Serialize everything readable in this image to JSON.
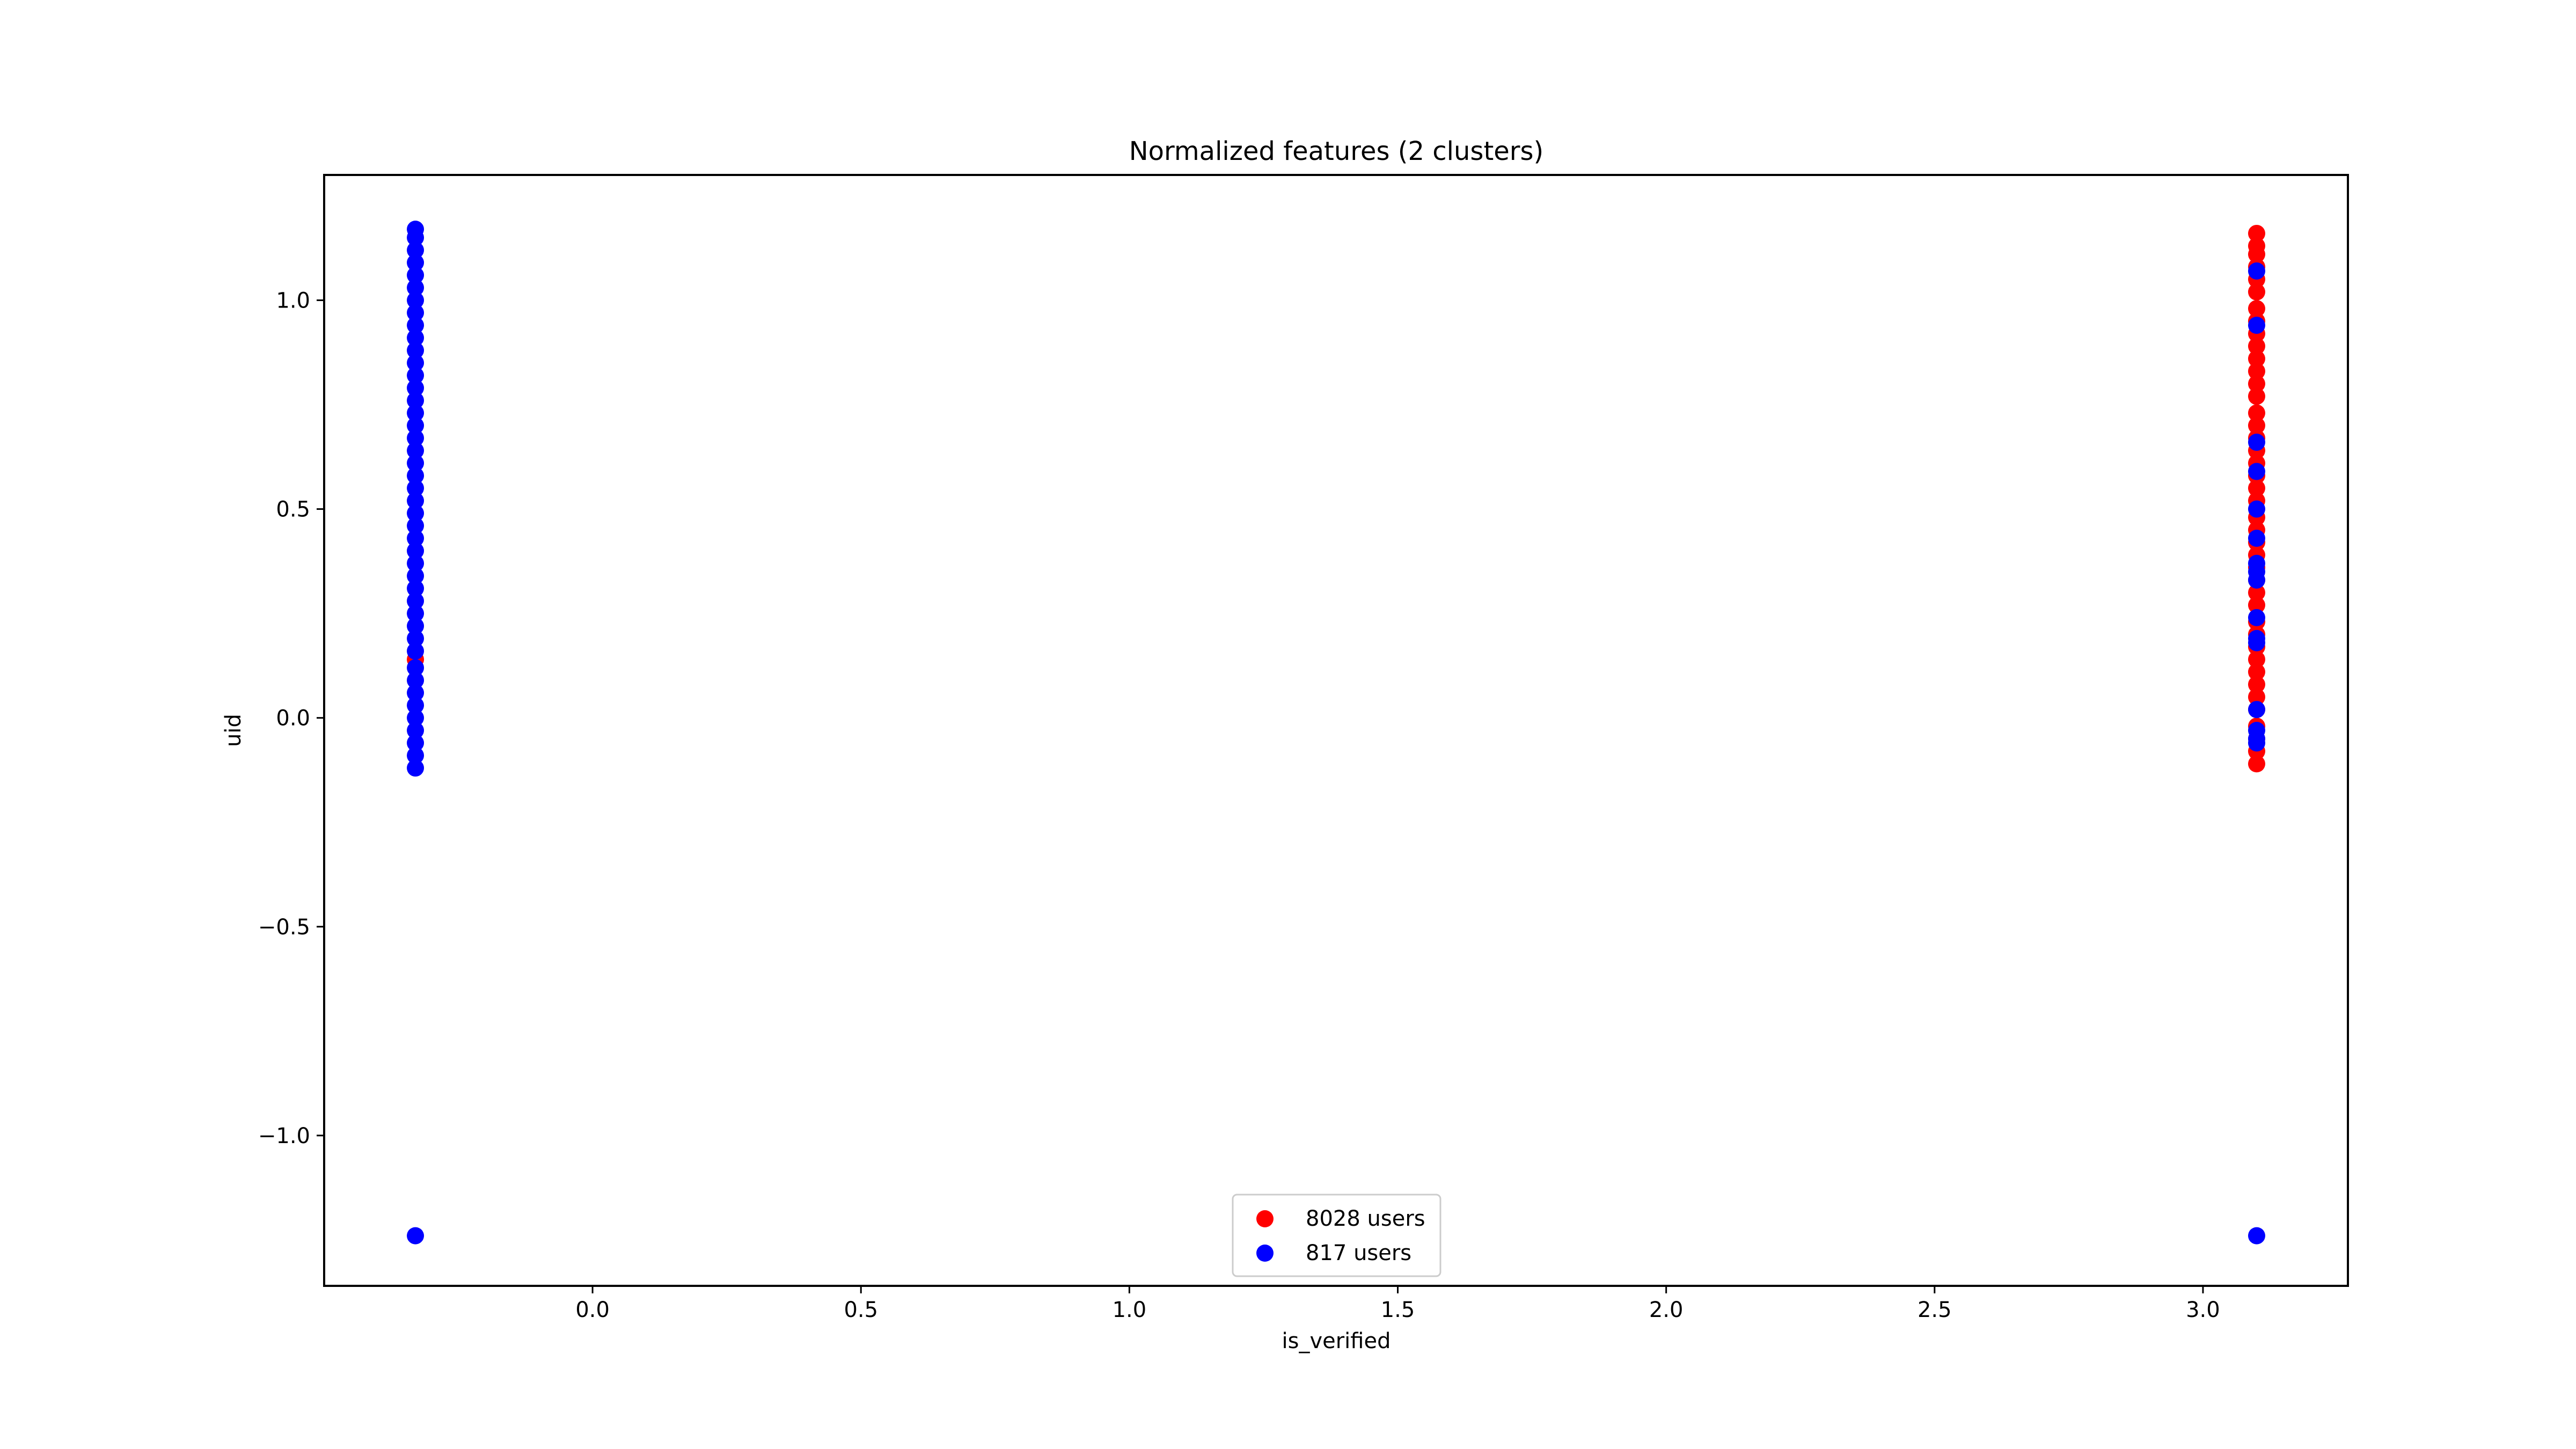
{
  "chart_data": {
    "type": "scatter",
    "title": "Normalized features (2 clusters)",
    "xlabel": "is_verified",
    "ylabel": "uid",
    "xlim": [
      -0.5,
      3.27
    ],
    "ylim": [
      -1.36,
      1.3
    ],
    "x_ticks": [
      0.0,
      0.5,
      1.0,
      1.5,
      2.0,
      2.5,
      3.0
    ],
    "x_tick_labels": [
      "0.0",
      "0.5",
      "1.0",
      "1.5",
      "2.0",
      "2.5",
      "3.0"
    ],
    "y_ticks": [
      -1.0,
      -0.5,
      0.0,
      0.5,
      1.0
    ],
    "y_tick_labels": [
      "−1.0",
      "−0.5",
      "0.0",
      "0.5",
      "1.0"
    ],
    "grid": false,
    "legend_position": "lower center",
    "series": [
      {
        "name": "8028 users",
        "color": "#ff0000",
        "points": [
          [
            -0.33,
            0.14
          ],
          [
            3.1,
            -0.11
          ],
          [
            3.1,
            -0.08
          ],
          [
            3.1,
            -0.05
          ],
          [
            3.1,
            -0.02
          ],
          [
            3.1,
            0.02
          ],
          [
            3.1,
            0.05
          ],
          [
            3.1,
            0.08
          ],
          [
            3.1,
            0.11
          ],
          [
            3.1,
            0.14
          ],
          [
            3.1,
            0.17
          ],
          [
            3.1,
            0.2
          ],
          [
            3.1,
            0.23
          ],
          [
            3.1,
            0.27
          ],
          [
            3.1,
            0.3
          ],
          [
            3.1,
            0.33
          ],
          [
            3.1,
            0.36
          ],
          [
            3.1,
            0.39
          ],
          [
            3.1,
            0.42
          ],
          [
            3.1,
            0.45
          ],
          [
            3.1,
            0.48
          ],
          [
            3.1,
            0.52
          ],
          [
            3.1,
            0.55
          ],
          [
            3.1,
            0.58
          ],
          [
            3.1,
            0.61
          ],
          [
            3.1,
            0.64
          ],
          [
            3.1,
            0.67
          ],
          [
            3.1,
            0.7
          ],
          [
            3.1,
            0.73
          ],
          [
            3.1,
            0.77
          ],
          [
            3.1,
            0.8
          ],
          [
            3.1,
            0.83
          ],
          [
            3.1,
            0.86
          ],
          [
            3.1,
            0.89
          ],
          [
            3.1,
            0.92
          ],
          [
            3.1,
            0.95
          ],
          [
            3.1,
            0.98
          ],
          [
            3.1,
            1.02
          ],
          [
            3.1,
            1.05
          ],
          [
            3.1,
            1.08
          ],
          [
            3.1,
            1.11
          ],
          [
            3.1,
            1.13
          ],
          [
            3.1,
            1.16
          ]
        ]
      },
      {
        "name": "817 users",
        "color": "#0000ff",
        "points": [
          [
            -0.33,
            -0.12
          ],
          [
            -0.33,
            -0.09
          ],
          [
            -0.33,
            -0.06
          ],
          [
            -0.33,
            -0.03
          ],
          [
            -0.33,
            0.0
          ],
          [
            -0.33,
            0.03
          ],
          [
            -0.33,
            0.06
          ],
          [
            -0.33,
            0.09
          ],
          [
            -0.33,
            0.12
          ],
          [
            -0.33,
            0.16
          ],
          [
            -0.33,
            0.19
          ],
          [
            -0.33,
            0.22
          ],
          [
            -0.33,
            0.25
          ],
          [
            -0.33,
            0.28
          ],
          [
            -0.33,
            0.31
          ],
          [
            -0.33,
            0.34
          ],
          [
            -0.33,
            0.37
          ],
          [
            -0.33,
            0.4
          ],
          [
            -0.33,
            0.43
          ],
          [
            -0.33,
            0.46
          ],
          [
            -0.33,
            0.49
          ],
          [
            -0.33,
            0.52
          ],
          [
            -0.33,
            0.55
          ],
          [
            -0.33,
            0.58
          ],
          [
            -0.33,
            0.61
          ],
          [
            -0.33,
            0.64
          ],
          [
            -0.33,
            0.67
          ],
          [
            -0.33,
            0.7
          ],
          [
            -0.33,
            0.73
          ],
          [
            -0.33,
            0.76
          ],
          [
            -0.33,
            0.79
          ],
          [
            -0.33,
            0.82
          ],
          [
            -0.33,
            0.85
          ],
          [
            -0.33,
            0.88
          ],
          [
            -0.33,
            0.91
          ],
          [
            -0.33,
            0.94
          ],
          [
            -0.33,
            0.97
          ],
          [
            -0.33,
            1.0
          ],
          [
            -0.33,
            1.03
          ],
          [
            -0.33,
            1.06
          ],
          [
            -0.33,
            1.09
          ],
          [
            -0.33,
            1.12
          ],
          [
            -0.33,
            1.15
          ],
          [
            -0.33,
            1.17
          ],
          [
            -0.33,
            -1.24
          ],
          [
            3.1,
            1.07
          ],
          [
            3.1,
            0.94
          ],
          [
            3.1,
            0.66
          ],
          [
            3.1,
            0.59
          ],
          [
            3.1,
            0.5
          ],
          [
            3.1,
            0.43
          ],
          [
            3.1,
            0.37
          ],
          [
            3.1,
            0.35
          ],
          [
            3.1,
            0.33
          ],
          [
            3.1,
            0.24
          ],
          [
            3.1,
            0.19
          ],
          [
            3.1,
            0.18
          ],
          [
            3.1,
            0.02
          ],
          [
            3.1,
            -0.03
          ],
          [
            3.1,
            -0.05
          ],
          [
            3.1,
            -0.06
          ],
          [
            3.1,
            -1.24
          ]
        ]
      }
    ]
  }
}
